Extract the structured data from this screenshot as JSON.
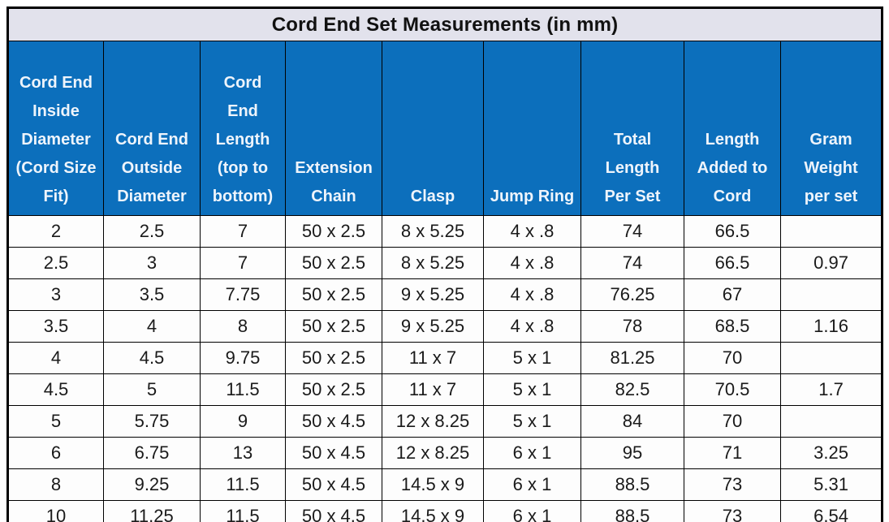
{
  "chart_data": {
    "type": "table",
    "title": "Cord End Set Measurements (in mm)",
    "columns": [
      "Cord End\nInside\nDiameter\n(Cord Size\nFit)",
      "Cord End\nOutside\nDiameter",
      "Cord\nEnd\nLength\n(top to\nbottom)",
      "Extension\nChain",
      "Clasp",
      "Jump Ring",
      "Total\nLength\nPer Set",
      "Length\nAdded to\nCord",
      "Gram\nWeight\nper set"
    ],
    "rows": [
      [
        "2",
        "2.5",
        "7",
        "50 x 2.5",
        "8 x 5.25",
        "4 x .8",
        "74",
        "66.5",
        ""
      ],
      [
        "2.5",
        "3",
        "7",
        "50 x 2.5",
        "8 x 5.25",
        "4 x .8",
        "74",
        "66.5",
        "0.97"
      ],
      [
        "3",
        "3.5",
        "7.75",
        "50 x 2.5",
        "9 x 5.25",
        "4 x .8",
        "76.25",
        "67",
        ""
      ],
      [
        "3.5",
        "4",
        "8",
        "50 x 2.5",
        "9 x 5.25",
        "4 x .8",
        "78",
        "68.5",
        "1.16"
      ],
      [
        "4",
        "4.5",
        "9.75",
        "50 x 2.5",
        "11 x 7",
        "5 x 1",
        "81.25",
        "70",
        ""
      ],
      [
        "4.5",
        "5",
        "11.5",
        "50 x 2.5",
        "11 x 7",
        "5 x 1",
        "82.5",
        "70.5",
        "1.7"
      ],
      [
        "5",
        "5.75",
        "9",
        "50 x 4.5",
        "12 x 8.25",
        "5 x 1",
        "84",
        "70",
        ""
      ],
      [
        "6",
        "6.75",
        "13",
        "50 x 4.5",
        "12 x 8.25",
        "6 x 1",
        "95",
        "71",
        "3.25"
      ],
      [
        "8",
        "9.25",
        "11.5",
        "50 x 4.5",
        "14.5 x 9",
        "6 x 1",
        "88.5",
        "73",
        "5.31"
      ],
      [
        "10",
        "11.25",
        "11.5",
        "50 x 4.5",
        "14.5 x 9",
        "6 x 1",
        "88.5",
        "73",
        "6.54"
      ]
    ],
    "layout": {
      "legend": "none",
      "grid": "on",
      "header_bg": "#0c6fbc",
      "header_text_color": "#eef4fb",
      "title_bg": "#e2e2ec",
      "cell_bg": "#fdfdfd",
      "border_color": "#000000",
      "outer_border": "thick",
      "inner_border": "thin"
    }
  }
}
